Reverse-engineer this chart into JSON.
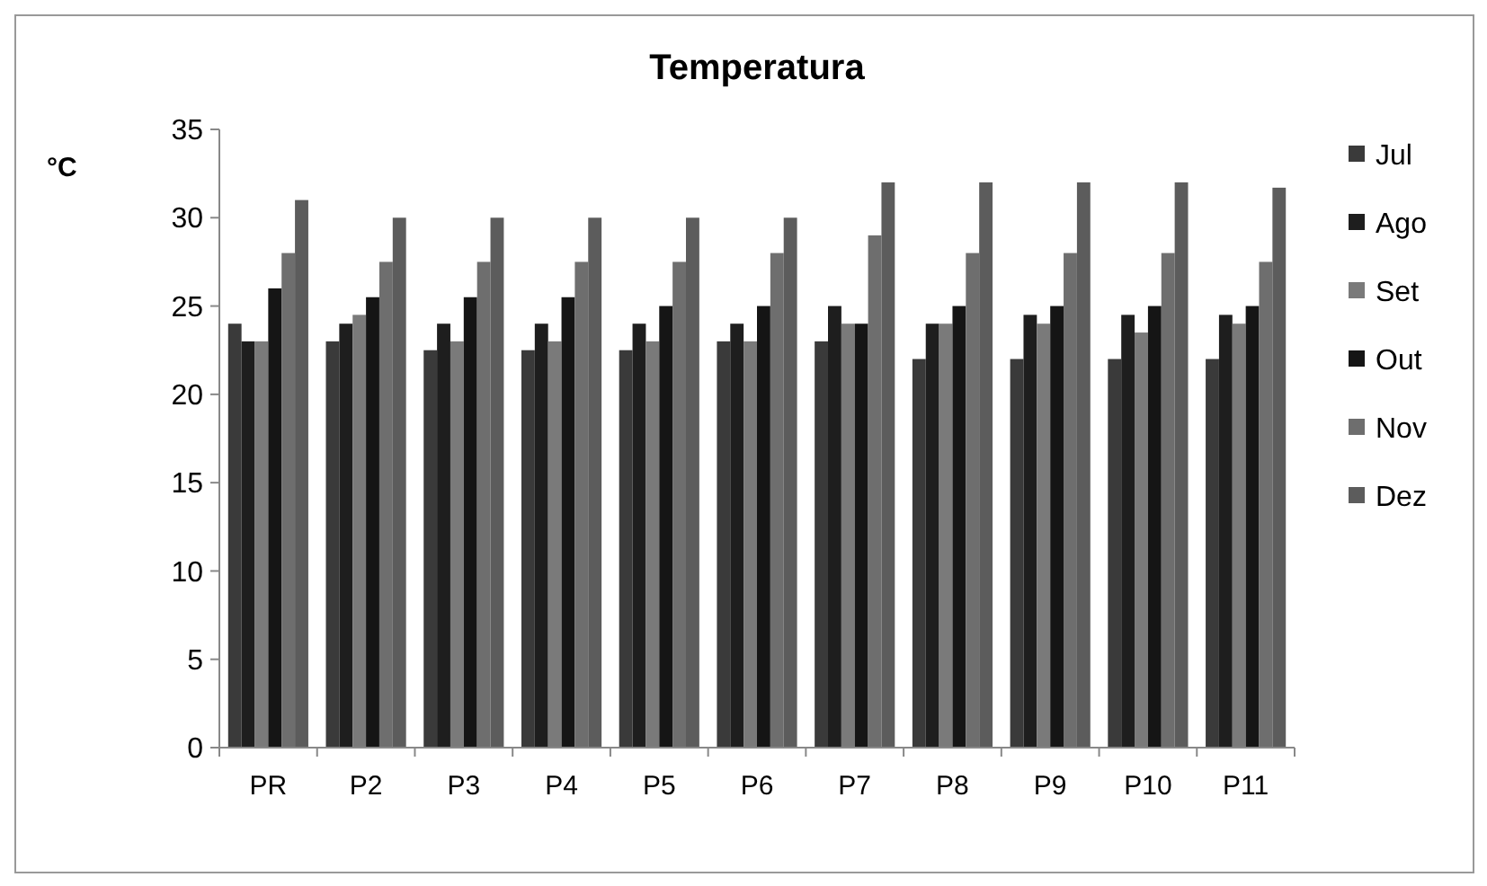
{
  "chart_data": {
    "type": "bar",
    "title": "Temperatura",
    "ylabel": "°C",
    "categories": [
      "PR",
      "P2",
      "P3",
      "P4",
      "P5",
      "P6",
      "P7",
      "P8",
      "P9",
      "P10",
      "P11"
    ],
    "series": [
      {
        "name": "Jul",
        "color": "#3a3a3a",
        "values": [
          24,
          23,
          22.5,
          22.5,
          22.5,
          23,
          23,
          22,
          22,
          22,
          22
        ]
      },
      {
        "name": "Ago",
        "color": "#1e1e1e",
        "values": [
          23,
          24,
          24,
          24,
          24,
          24,
          25,
          24,
          24.5,
          24.5,
          24.5
        ]
      },
      {
        "name": "Set",
        "color": "#7a7a7a",
        "values": [
          23,
          24.5,
          23,
          23,
          23,
          23,
          24,
          24,
          24,
          23.5,
          24
        ]
      },
      {
        "name": "Out",
        "color": "#151515",
        "values": [
          26,
          25.5,
          25.5,
          25.5,
          25,
          25,
          24,
          25,
          25,
          25,
          25
        ]
      },
      {
        "name": "Nov",
        "color": "#6e6e6e",
        "values": [
          28,
          27.5,
          27.5,
          27.5,
          27.5,
          28,
          29,
          28,
          28,
          28,
          27.5
        ]
      },
      {
        "name": "Dez",
        "color": "#5c5c5c",
        "values": [
          31,
          30,
          30,
          30,
          30,
          30,
          32,
          32,
          32,
          32,
          31.7
        ]
      }
    ],
    "ylim": [
      0,
      35
    ],
    "yticks": [
      0,
      5,
      10,
      15,
      20,
      25,
      30,
      35
    ],
    "grid": false,
    "legend": "right"
  }
}
